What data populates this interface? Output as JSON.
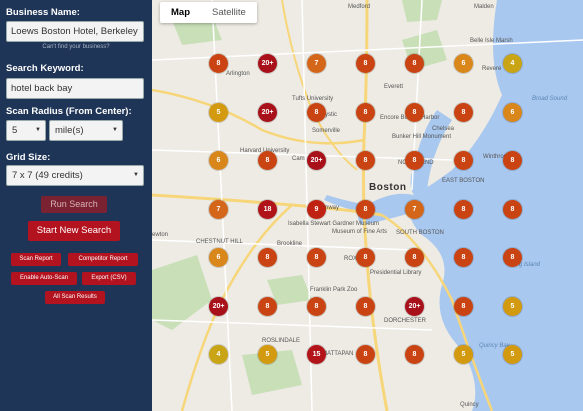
{
  "sidebar": {
    "business_label": "Business Name:",
    "business_value": "Loews Boston Hotel, Berkeley",
    "cant_find": "Can't find your business?",
    "keyword_label": "Search Keyword:",
    "keyword_value": "hotel back bay",
    "radius_label": "Scan Radius (From Center):",
    "radius_value": "5",
    "radius_unit": "mile(s)",
    "grid_label": "Grid Size:",
    "grid_value": "7 x 7 (49 credits)",
    "run_search": "Run Search",
    "start_new": "Start New Search",
    "scan_report": "Scan Report",
    "competitor_report": "Competitor Report",
    "auto_scan": "Enable Auto-Scan",
    "export_csv": "Export (CSV)",
    "all_results": "All Scan Results"
  },
  "map": {
    "tab_map": "Map",
    "tab_satellite": "Satellite",
    "labels": {
      "arlington": "Arlington",
      "somerville": "Somerville",
      "everett": "Everett",
      "chelsea": "Chelsea",
      "boston": "Boston",
      "brookline": "Brookline",
      "winthrop": "Winthrop",
      "medford": "Medford",
      "malden": "Malden",
      "revere": "Revere",
      "quincy": "Quincy",
      "cambridge": "Cam",
      "newton": "ewton",
      "fenway": "Fenway",
      "franklin": "Franklin Park Zoo",
      "belle_isle": "Belle Isle Marsh",
      "broad_sound": "Broad Sound",
      "long_island": "g Island",
      "quincy_bay": "Quincy Bay",
      "tufts": "Tufts University",
      "isabella": "Isabella Stewart Gardner Museum",
      "mfa": "Museum of Fine Arts",
      "library": "Presidential Library",
      "harvard": "Harvard University",
      "bunker": "Bunker Hill Monument",
      "encore": "Encore Boston Harbor",
      "mystic": "Mystic",
      "dorchester": "DORCHESTER",
      "roxbury": "ROXBURY",
      "chestnut": "CHESTNUT HILL",
      "roslindale": "ROSLINDALE",
      "mattapan": "MATTAPAN",
      "south_boston": "SOUTH BOSTON",
      "north_end": "NORTH END",
      "east_boston": "EAST BOSTON"
    },
    "ranks": [
      [
        "8",
        "20+",
        "7",
        "8",
        "8",
        "6",
        "4"
      ],
      [
        "5",
        "20+",
        "8",
        "8",
        "8",
        "8",
        "6"
      ],
      [
        "6",
        "8",
        "20+",
        "8",
        "8",
        "8",
        "8"
      ],
      [
        "7",
        "18",
        "9",
        "8",
        "7",
        "8",
        "8"
      ],
      [
        "6",
        "8",
        "8",
        "8",
        "8",
        "8",
        "8"
      ],
      [
        "20+",
        "8",
        "8",
        "8",
        "20+",
        "8",
        "5"
      ],
      [
        "4",
        "5",
        "15",
        "8",
        "8",
        "5",
        "5"
      ]
    ],
    "colors": {
      "rank_4": "#c9a516",
      "rank_5": "#d39a10",
      "rank_6": "#d9861a",
      "rank_7": "#d4661a",
      "rank_8": "#c94412",
      "rank_9": "#bf2212",
      "rank_15": "#b3141a",
      "rank_18": "#b01418",
      "rank_20plus": "#a8101a",
      "water": "#a9c8ef",
      "land": "#eeebe4",
      "park": "#c8dfb8",
      "highway": "#f7d67a"
    }
  }
}
